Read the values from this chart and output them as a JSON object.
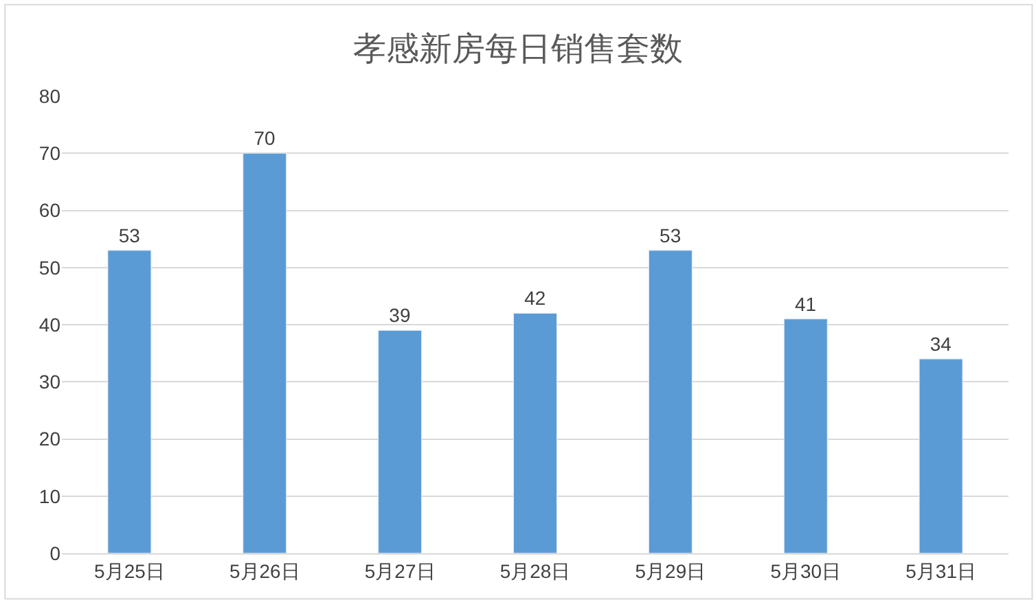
{
  "chart_data": {
    "type": "bar",
    "title": "孝感新房每日销售套数",
    "categories": [
      "5月25日",
      "5月26日",
      "5月27日",
      "5月28日",
      "5月29日",
      "5月30日",
      "5月31日"
    ],
    "values": [
      53,
      70,
      39,
      42,
      53,
      41,
      34
    ],
    "color": "#5b9bd5",
    "ylim": [
      0,
      80
    ],
    "yticks": [
      0,
      10,
      20,
      30,
      40,
      50,
      60,
      70,
      80
    ],
    "grid": "y",
    "data_labels": true
  }
}
